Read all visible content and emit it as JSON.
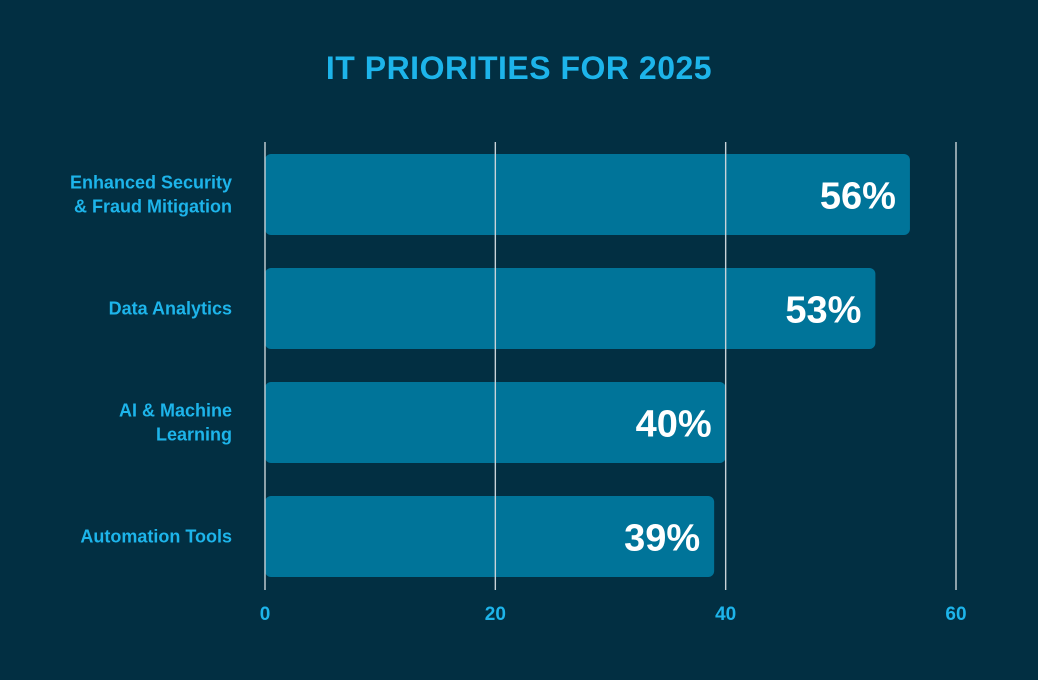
{
  "chart_data": {
    "type": "bar",
    "orientation": "horizontal",
    "title": "IT PRIORITIES FOR 2025",
    "categories": [
      [
        "Enhanced Security",
        "& Fraud Mitigation"
      ],
      [
        "Data Analytics"
      ],
      [
        "AI & Machine",
        "Learning"
      ],
      [
        "Automation Tools"
      ]
    ],
    "values": [
      56,
      53,
      40,
      39
    ],
    "value_labels": [
      "56%",
      "53%",
      "40%",
      "39%"
    ],
    "xlim": [
      0,
      60
    ],
    "xticks": [
      0,
      20,
      40,
      60
    ],
    "xtick_labels": [
      "0",
      "20",
      "40",
      "60"
    ],
    "xlabel": "",
    "ylabel": "",
    "grid": true,
    "legend": "none",
    "colors": {
      "background": "#022f42",
      "bar": "#007499",
      "text": "#1db4ea",
      "value_text": "#ffffff",
      "grid": "#c9d3d8"
    }
  }
}
